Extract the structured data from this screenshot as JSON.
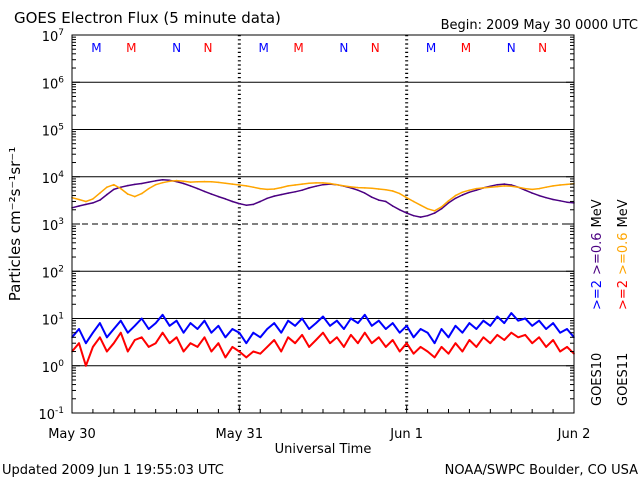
{
  "header": {
    "title": "GOES Electron Flux (5 minute data)",
    "begin": "Begin: 2009 May 30 0000 UTC"
  },
  "footer": {
    "updated": "Updated 2009 Jun  1 19:55:03 UTC",
    "credit": "NOAA/SWPC Boulder, CO USA"
  },
  "colors": {
    "goes10_high": "#0000ff",
    "goes11_high": "#ff0000",
    "goes10_low": "#4b0082",
    "goes11_low": "#ffa500"
  },
  "chart_data": {
    "type": "line",
    "title": "GOES Electron Flux (5 minute data)",
    "xlabel": "Universal Time",
    "ylabel": "Particles cm⁻²s⁻¹sr⁻¹",
    "y_scale": "log",
    "ylim": [
      0.1,
      10000000
    ],
    "xlim": [
      0,
      72
    ],
    "x_unit": "hours since 2009 May 30 0000 UTC",
    "x_ticks": [
      {
        "x": 0,
        "label": "May 30"
      },
      {
        "x": 24,
        "label": "May 31"
      },
      {
        "x": 48,
        "label": "Jun 1"
      },
      {
        "x": 72,
        "label": "Jun 2"
      }
    ],
    "y_ticks": [
      {
        "exp": -1,
        "base": "10",
        "sup": "-1"
      },
      {
        "exp": 0,
        "base": "10",
        "sup": "0"
      },
      {
        "exp": 1,
        "base": "10",
        "sup": "1"
      },
      {
        "exp": 2,
        "base": "10",
        "sup": "2"
      },
      {
        "exp": 3,
        "base": "10",
        "sup": "3"
      },
      {
        "exp": 4,
        "base": "10",
        "sup": "4"
      },
      {
        "exp": 5,
        "base": "10",
        "sup": "5"
      },
      {
        "exp": 6,
        "base": "10",
        "sup": "6"
      },
      {
        "exp": 7,
        "base": "10",
        "sup": "7"
      }
    ],
    "grid": true,
    "dashed_threshold": 1000,
    "day_marks": [
      24,
      48
    ],
    "markers": [
      {
        "x": 3.5,
        "label": "M",
        "color": "#0000ff"
      },
      {
        "x": 8.5,
        "label": "M",
        "color": "#ff0000"
      },
      {
        "x": 15,
        "label": "N",
        "color": "#0000ff"
      },
      {
        "x": 19.5,
        "label": "N",
        "color": "#ff0000"
      },
      {
        "x": 27.5,
        "label": "M",
        "color": "#0000ff"
      },
      {
        "x": 32.5,
        "label": "M",
        "color": "#ff0000"
      },
      {
        "x": 39,
        "label": "N",
        "color": "#0000ff"
      },
      {
        "x": 43.5,
        "label": "N",
        "color": "#ff0000"
      },
      {
        "x": 51.5,
        "label": "M",
        "color": "#0000ff"
      },
      {
        "x": 56.5,
        "label": "M",
        "color": "#ff0000"
      },
      {
        "x": 63,
        "label": "N",
        "color": "#0000ff"
      },
      {
        "x": 67.5,
        "label": "N",
        "color": "#ff0000"
      }
    ],
    "legend": {
      "placement": "right",
      "goes10": "GOES10",
      "goes11": "GOES11",
      "high_energy": ">=2",
      "low_energy": ">=0.6",
      "unit": "MeV"
    },
    "series": [
      {
        "name": "GOES10 >=0.6 MeV",
        "color": "#4b0082",
        "x": [
          0,
          1,
          2,
          3,
          4,
          5,
          6,
          7,
          8,
          9,
          10,
          11,
          12,
          13,
          14,
          15,
          16,
          17,
          18,
          19,
          20,
          21,
          22,
          23,
          24,
          25,
          26,
          27,
          28,
          29,
          30,
          31,
          32,
          33,
          34,
          35,
          36,
          37,
          38,
          39,
          40,
          41,
          42,
          43,
          44,
          45,
          46,
          47,
          48,
          49,
          50,
          51,
          52,
          53,
          54,
          55,
          56,
          57,
          58,
          59,
          60,
          61,
          62,
          63,
          64,
          65,
          66,
          67,
          68,
          69,
          70,
          71,
          72
        ],
        "y": [
          2200,
          2400,
          2600,
          2800,
          3200,
          4200,
          5400,
          6000,
          6500,
          6900,
          7200,
          7700,
          8200,
          8600,
          8400,
          7900,
          7200,
          6400,
          5600,
          4900,
          4300,
          3800,
          3400,
          3000,
          2700,
          2500,
          2600,
          3000,
          3500,
          3900,
          4200,
          4500,
          4800,
          5200,
          5800,
          6300,
          6800,
          7000,
          6800,
          6300,
          5800,
          5200,
          4500,
          3700,
          3200,
          3000,
          2400,
          2000,
          1700,
          1500,
          1400,
          1500,
          1700,
          2100,
          2800,
          3500,
          4100,
          4700,
          5200,
          5800,
          6300,
          6800,
          7000,
          6700,
          6000,
          5200,
          4500,
          4000,
          3600,
          3300,
          3100,
          2900,
          2800
        ]
      },
      {
        "name": "GOES11 >=0.6 MeV",
        "color": "#ffa500",
        "x": [
          0,
          1,
          2,
          3,
          4,
          5,
          6,
          7,
          8,
          9,
          10,
          11,
          12,
          13,
          14,
          15,
          16,
          17,
          18,
          19,
          20,
          21,
          22,
          23,
          24,
          25,
          26,
          27,
          28,
          29,
          30,
          31,
          32,
          33,
          34,
          35,
          36,
          37,
          38,
          39,
          40,
          41,
          42,
          43,
          44,
          45,
          46,
          47,
          48,
          49,
          50,
          51,
          52,
          53,
          54,
          55,
          56,
          57,
          58,
          59,
          60,
          61,
          62,
          63,
          64,
          65,
          66,
          67,
          68,
          69,
          70,
          71,
          72
        ],
        "y": [
          3600,
          3300,
          3000,
          3400,
          4500,
          6000,
          6800,
          5600,
          4300,
          3800,
          4400,
          5600,
          6800,
          7500,
          8000,
          8300,
          8000,
          7700,
          7800,
          7900,
          7800,
          7600,
          7300,
          7000,
          6700,
          6400,
          6000,
          5600,
          5400,
          5500,
          5900,
          6400,
          6700,
          7000,
          7300,
          7400,
          7400,
          7200,
          6800,
          6400,
          6100,
          5900,
          5800,
          5700,
          5500,
          5300,
          5000,
          4400,
          3600,
          3000,
          2500,
          2100,
          1900,
          2300,
          3100,
          4000,
          4700,
          5200,
          5600,
          5800,
          6000,
          6200,
          6400,
          6300,
          6000,
          5600,
          5400,
          5600,
          6000,
          6400,
          6700,
          6900,
          7100
        ]
      },
      {
        "name": "GOES10 >=2 MeV",
        "color": "#0000ff",
        "x": [
          0,
          1,
          2,
          3,
          4,
          5,
          6,
          7,
          8,
          9,
          10,
          11,
          12,
          13,
          14,
          15,
          16,
          17,
          18,
          19,
          20,
          21,
          22,
          23,
          24,
          25,
          26,
          27,
          28,
          29,
          30,
          31,
          32,
          33,
          34,
          35,
          36,
          37,
          38,
          39,
          40,
          41,
          42,
          43,
          44,
          45,
          46,
          47,
          48,
          49,
          50,
          51,
          52,
          53,
          54,
          55,
          56,
          57,
          58,
          59,
          60,
          61,
          62,
          63,
          64,
          65,
          66,
          67,
          68,
          69,
          70,
          71,
          72
        ],
        "y": [
          4,
          6,
          3,
          5,
          8,
          4,
          6,
          9,
          5,
          7,
          10,
          6,
          8,
          12,
          7,
          9,
          5,
          8,
          6,
          9,
          5,
          7,
          4,
          6,
          5,
          3,
          5,
          4,
          6,
          8,
          5,
          9,
          7,
          10,
          6,
          8,
          11,
          7,
          9,
          6,
          10,
          8,
          12,
          7,
          9,
          6,
          8,
          5,
          7,
          4,
          6,
          5,
          3,
          6,
          4,
          7,
          5,
          8,
          6,
          9,
          7,
          11,
          8,
          13,
          9,
          10,
          7,
          9,
          6,
          8,
          5,
          6,
          4
        ]
      },
      {
        "name": "GOES11 >=2 MeV",
        "color": "#ff0000",
        "x": [
          0,
          1,
          2,
          3,
          4,
          5,
          6,
          7,
          8,
          9,
          10,
          11,
          12,
          13,
          14,
          15,
          16,
          17,
          18,
          19,
          20,
          21,
          22,
          23,
          24,
          25,
          26,
          27,
          28,
          29,
          30,
          31,
          32,
          33,
          34,
          35,
          36,
          37,
          38,
          39,
          40,
          41,
          42,
          43,
          44,
          45,
          46,
          47,
          48,
          49,
          50,
          51,
          52,
          53,
          54,
          55,
          56,
          57,
          58,
          59,
          60,
          61,
          62,
          63,
          64,
          65,
          66,
          67,
          68,
          69,
          70,
          71,
          72
        ],
        "y": [
          2,
          3,
          1,
          2.5,
          4,
          2,
          3,
          5,
          2,
          3.5,
          4,
          2.5,
          3,
          5,
          3,
          4,
          2,
          3,
          2.5,
          4,
          2,
          3,
          1.5,
          2.5,
          2,
          1.5,
          2,
          1.8,
          2.5,
          3.5,
          2,
          4,
          3,
          4.5,
          2.5,
          3.5,
          5,
          3,
          4,
          2.5,
          4.5,
          3,
          5,
          3,
          4,
          2.5,
          3.5,
          2,
          3,
          1.8,
          2.5,
          2,
          1.5,
          2.5,
          1.8,
          3,
          2,
          3.5,
          2.5,
          4,
          3,
          4.5,
          3.5,
          5,
          4,
          4.5,
          3,
          4,
          2.5,
          3.5,
          2,
          2.5,
          1.8
        ]
      }
    ]
  }
}
